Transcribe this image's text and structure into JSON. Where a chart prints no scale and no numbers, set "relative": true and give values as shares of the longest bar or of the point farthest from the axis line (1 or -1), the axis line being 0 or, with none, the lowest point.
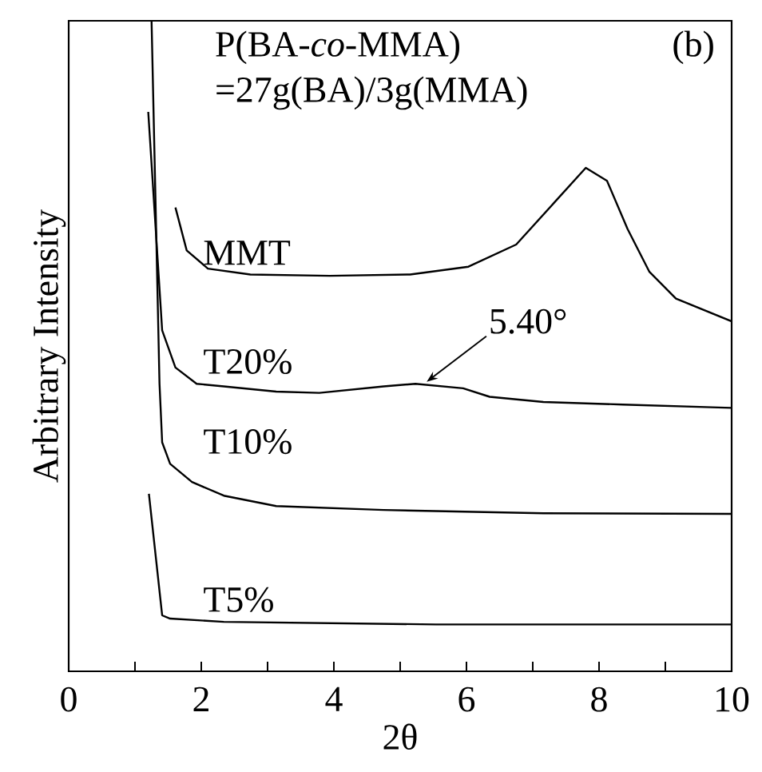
{
  "chart_data": {
    "type": "line",
    "relative": true,
    "xlabel": "2θ",
    "ylabel": "Arbitrary Intensity",
    "xlim": [
      0,
      10
    ],
    "xticks": [
      0,
      {
        "value": 1,
        "label": null
      },
      2,
      {
        "value": 3,
        "label": null
      },
      4,
      {
        "value": 5,
        "label": null
      },
      6,
      {
        "value": 7,
        "label": null
      },
      8,
      {
        "value": 9,
        "label": null
      },
      10
    ],
    "tick_labels": "x",
    "legend": false,
    "marker": "none",
    "line_style": "solid",
    "series": [
      {
        "name": "MMT",
        "color": "#000000",
        "x": [
          1.61,
          1.78,
          2.1,
          2.74,
          3.94,
          5.15,
          6.03,
          6.75,
          7.32,
          7.8,
          8.12,
          8.43,
          8.76,
          9.16,
          10
        ],
        "values": [
          0.713,
          0.647,
          0.619,
          0.61,
          0.608,
          0.61,
          0.622,
          0.656,
          0.72,
          0.774,
          0.754,
          0.68,
          0.614,
          0.573,
          0.538
        ]
      },
      {
        "name": "T20%",
        "color": "#000000",
        "x": [
          1.2,
          1.41,
          1.61,
          1.93,
          2.34,
          3.13,
          3.78,
          4.75,
          5.23,
          5.95,
          6.35,
          7.16,
          8.36,
          10
        ],
        "values": [
          0.86,
          0.524,
          0.467,
          0.442,
          0.438,
          0.43,
          0.428,
          0.438,
          0.442,
          0.435,
          0.422,
          0.414,
          0.41,
          0.405
        ]
      },
      {
        "name": "T10%",
        "color": "#000000",
        "x": [
          1.25,
          1.37,
          1.41,
          1.53,
          1.86,
          2.34,
          3.13,
          4.75,
          7.16,
          10
        ],
        "values": [
          1.0,
          0.442,
          0.352,
          0.319,
          0.291,
          0.27,
          0.254,
          0.248,
          0.243,
          0.242
        ]
      },
      {
        "name": "T5%",
        "color": "#000000",
        "x": [
          1.21,
          1.41,
          1.53,
          2.34,
          5.54,
          10
        ],
        "values": [
          0.273,
          0.086,
          0.081,
          0.076,
          0.072,
          0.072
        ]
      }
    ],
    "annotations": [
      "P(BA-*co*-MMA)",
      "=27g(BA)/3g(MMA)",
      "(b)",
      {
        "text": "5.40°",
        "x": 5.4,
        "y": 0.445
      }
    ]
  }
}
